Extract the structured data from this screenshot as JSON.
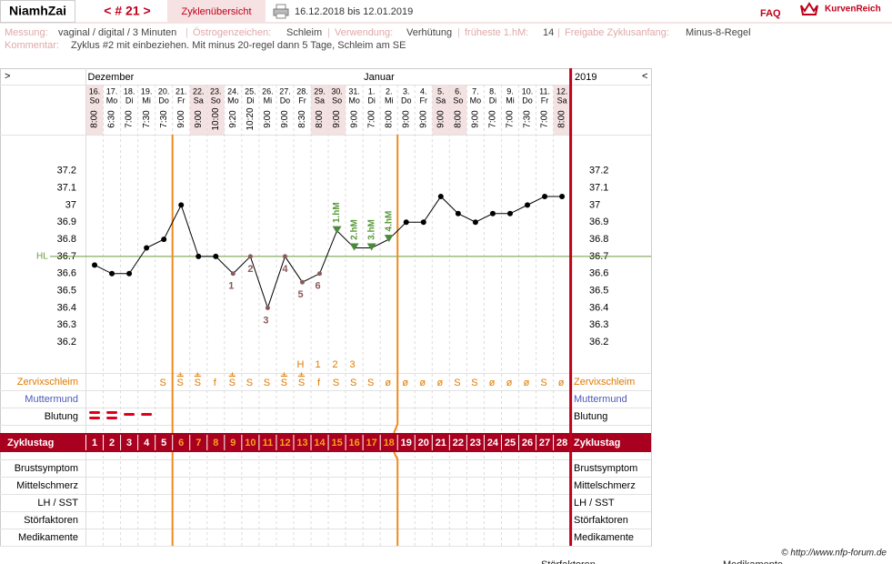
{
  "header": {
    "user": "NiamhZai",
    "cycle_nav": "< # 21 >",
    "tab": "Zyklenübersicht",
    "period": "16.12.2018 bis 12.01.2019",
    "faq": "FAQ",
    "brand": "KurvenReich"
  },
  "info": {
    "fields": [
      {
        "label": "Messung:",
        "value": "vaginal / digital / 3 Minuten"
      },
      {
        "label": "Östrogenzeichen:",
        "value": "Schleim"
      },
      {
        "label": "Verwendung:",
        "value": "Verhütung"
      },
      {
        "label": "früheste 1.hM:",
        "value": "14"
      },
      {
        "label": "Freigabe Zyklusanfang:",
        "value": "Minus-8-Regel"
      }
    ],
    "separator": "|",
    "comment_label": "Kommentar:",
    "comment": "Zyklus #2  mit einbeziehen. Mit minus 20-regel dann 5 Tage,  Schleim am SE"
  },
  "chart_data": {
    "type": "line",
    "nav_left": ">",
    "nav_right": "<",
    "months": [
      "Dezember",
      "Januar"
    ],
    "year": "2019",
    "days": [
      "16.",
      "17.",
      "18.",
      "19.",
      "20.",
      "21.",
      "22.",
      "23.",
      "24.",
      "25.",
      "26.",
      "27.",
      "28.",
      "29.",
      "30.",
      "31.",
      "1.",
      "2.",
      "3.",
      "4.",
      "5.",
      "6.",
      "7.",
      "8.",
      "9.",
      "10.",
      "11.",
      "12."
    ],
    "weekdays": [
      "So",
      "Mo",
      "Di",
      "Mi",
      "Do",
      "Fr",
      "Sa",
      "So",
      "Mo",
      "Di",
      "Mi",
      "Do",
      "Fr",
      "Sa",
      "So",
      "Mo",
      "Di",
      "Mi",
      "Do",
      "Fr",
      "Sa",
      "So",
      "Mo",
      "Di",
      "Mi",
      "Do",
      "Fr",
      "Sa"
    ],
    "times": [
      "8:00",
      "6:30",
      "7:00",
      "7:30",
      "7:30",
      "9:00",
      "9:00",
      "10:00",
      "9:20",
      "10:20",
      "9:00",
      "9:00",
      "8:30",
      "8:00",
      "9:00",
      "9:00",
      "7:00",
      "8:00",
      "9:00",
      "9:00",
      "9:00",
      "8:00",
      "9:00",
      "7:00",
      "7:00",
      "7:30",
      "7:00",
      "8:00"
    ],
    "values": [
      36.65,
      36.6,
      36.6,
      36.75,
      36.8,
      37.0,
      36.7,
      36.7,
      36.6,
      36.7,
      36.4,
      36.7,
      36.55,
      36.6,
      36.85,
      36.75,
      36.75,
      36.8,
      36.9,
      36.9,
      37.05,
      36.95,
      36.9,
      36.95,
      36.95,
      37.0,
      37.05,
      37.05
    ],
    "color": "#000000",
    "ylim": [
      36.1,
      37.4
    ],
    "yticks": [
      36.2,
      36.3,
      36.4,
      36.5,
      36.6,
      36.7,
      36.8,
      36.9,
      37,
      37.1,
      37.2
    ],
    "cover_line": {
      "label": "HL",
      "value": 36.7,
      "color": "#6a9a3a"
    },
    "low_labels": [
      null,
      null,
      null,
      null,
      null,
      null,
      null,
      null,
      "1",
      "2",
      "3",
      "4",
      "5",
      "6",
      null,
      null,
      null,
      null,
      null,
      null,
      null,
      null,
      null,
      null,
      null,
      null,
      null,
      null
    ],
    "high_labels": [
      null,
      null,
      null,
      null,
      null,
      null,
      null,
      null,
      null,
      null,
      null,
      null,
      null,
      null,
      "1.hM",
      "2.hM",
      "3.hM",
      "4.hM",
      null,
      null,
      null,
      null,
      null,
      null,
      null,
      null,
      null,
      null
    ],
    "peak_labels": [
      null,
      null,
      null,
      null,
      null,
      null,
      null,
      null,
      null,
      null,
      null,
      null,
      "H",
      "1",
      "2",
      "3",
      null,
      null,
      null,
      null,
      null,
      null,
      null,
      null,
      null,
      null,
      null,
      null
    ],
    "mucus": [
      null,
      null,
      null,
      null,
      {
        "main": "S"
      },
      {
        "top": "+",
        "main": "S"
      },
      {
        "top": "+",
        "main": "S"
      },
      {
        "main": "f"
      },
      {
        "top": "+",
        "main": "S"
      },
      {
        "main": "S"
      },
      {
        "main": "S"
      },
      {
        "top": "+",
        "main": "S"
      },
      {
        "top": "+",
        "main": "S"
      },
      {
        "main": "f"
      },
      {
        "main": "S"
      },
      {
        "main": "S"
      },
      {
        "main": "S"
      },
      {
        "main": "ø"
      },
      {
        "main": "ø"
      },
      {
        "main": "ø"
      },
      {
        "main": "ø"
      },
      {
        "main": "S"
      },
      {
        "main": "S"
      },
      {
        "main": "ø"
      },
      {
        "main": "ø"
      },
      {
        "main": "ø"
      },
      {
        "main": "S"
      },
      {
        "main": "ø"
      }
    ],
    "bleeding": [
      2,
      2,
      1,
      1,
      null,
      null,
      null,
      null,
      null,
      null,
      null,
      null,
      null,
      null,
      null,
      null,
      null,
      null,
      null,
      null,
      null,
      null,
      null,
      null,
      null,
      null,
      null,
      null
    ],
    "cycle_days": [
      1,
      2,
      3,
      4,
      5,
      6,
      7,
      8,
      9,
      10,
      11,
      12,
      13,
      14,
      15,
      16,
      17,
      18,
      19,
      20,
      21,
      22,
      23,
      24,
      25,
      26,
      27,
      28
    ],
    "infertile_until": 5,
    "fertile_until": 18,
    "rows": {
      "mucus": "Zervixschleim",
      "cervix": "Muttermund",
      "bleeding": "Blutung",
      "cycle": "Zyklustag",
      "breast": "Brustsymptom",
      "pain": "Mittelschmerz",
      "lh": "LH / SST",
      "disturb": "Störfaktoren",
      "meds": "Medikamente"
    }
  },
  "footer": {
    "credit": "© http://www.nfp-forum.de",
    "cut": [
      "Störfaktoren",
      "Medikamente"
    ]
  }
}
